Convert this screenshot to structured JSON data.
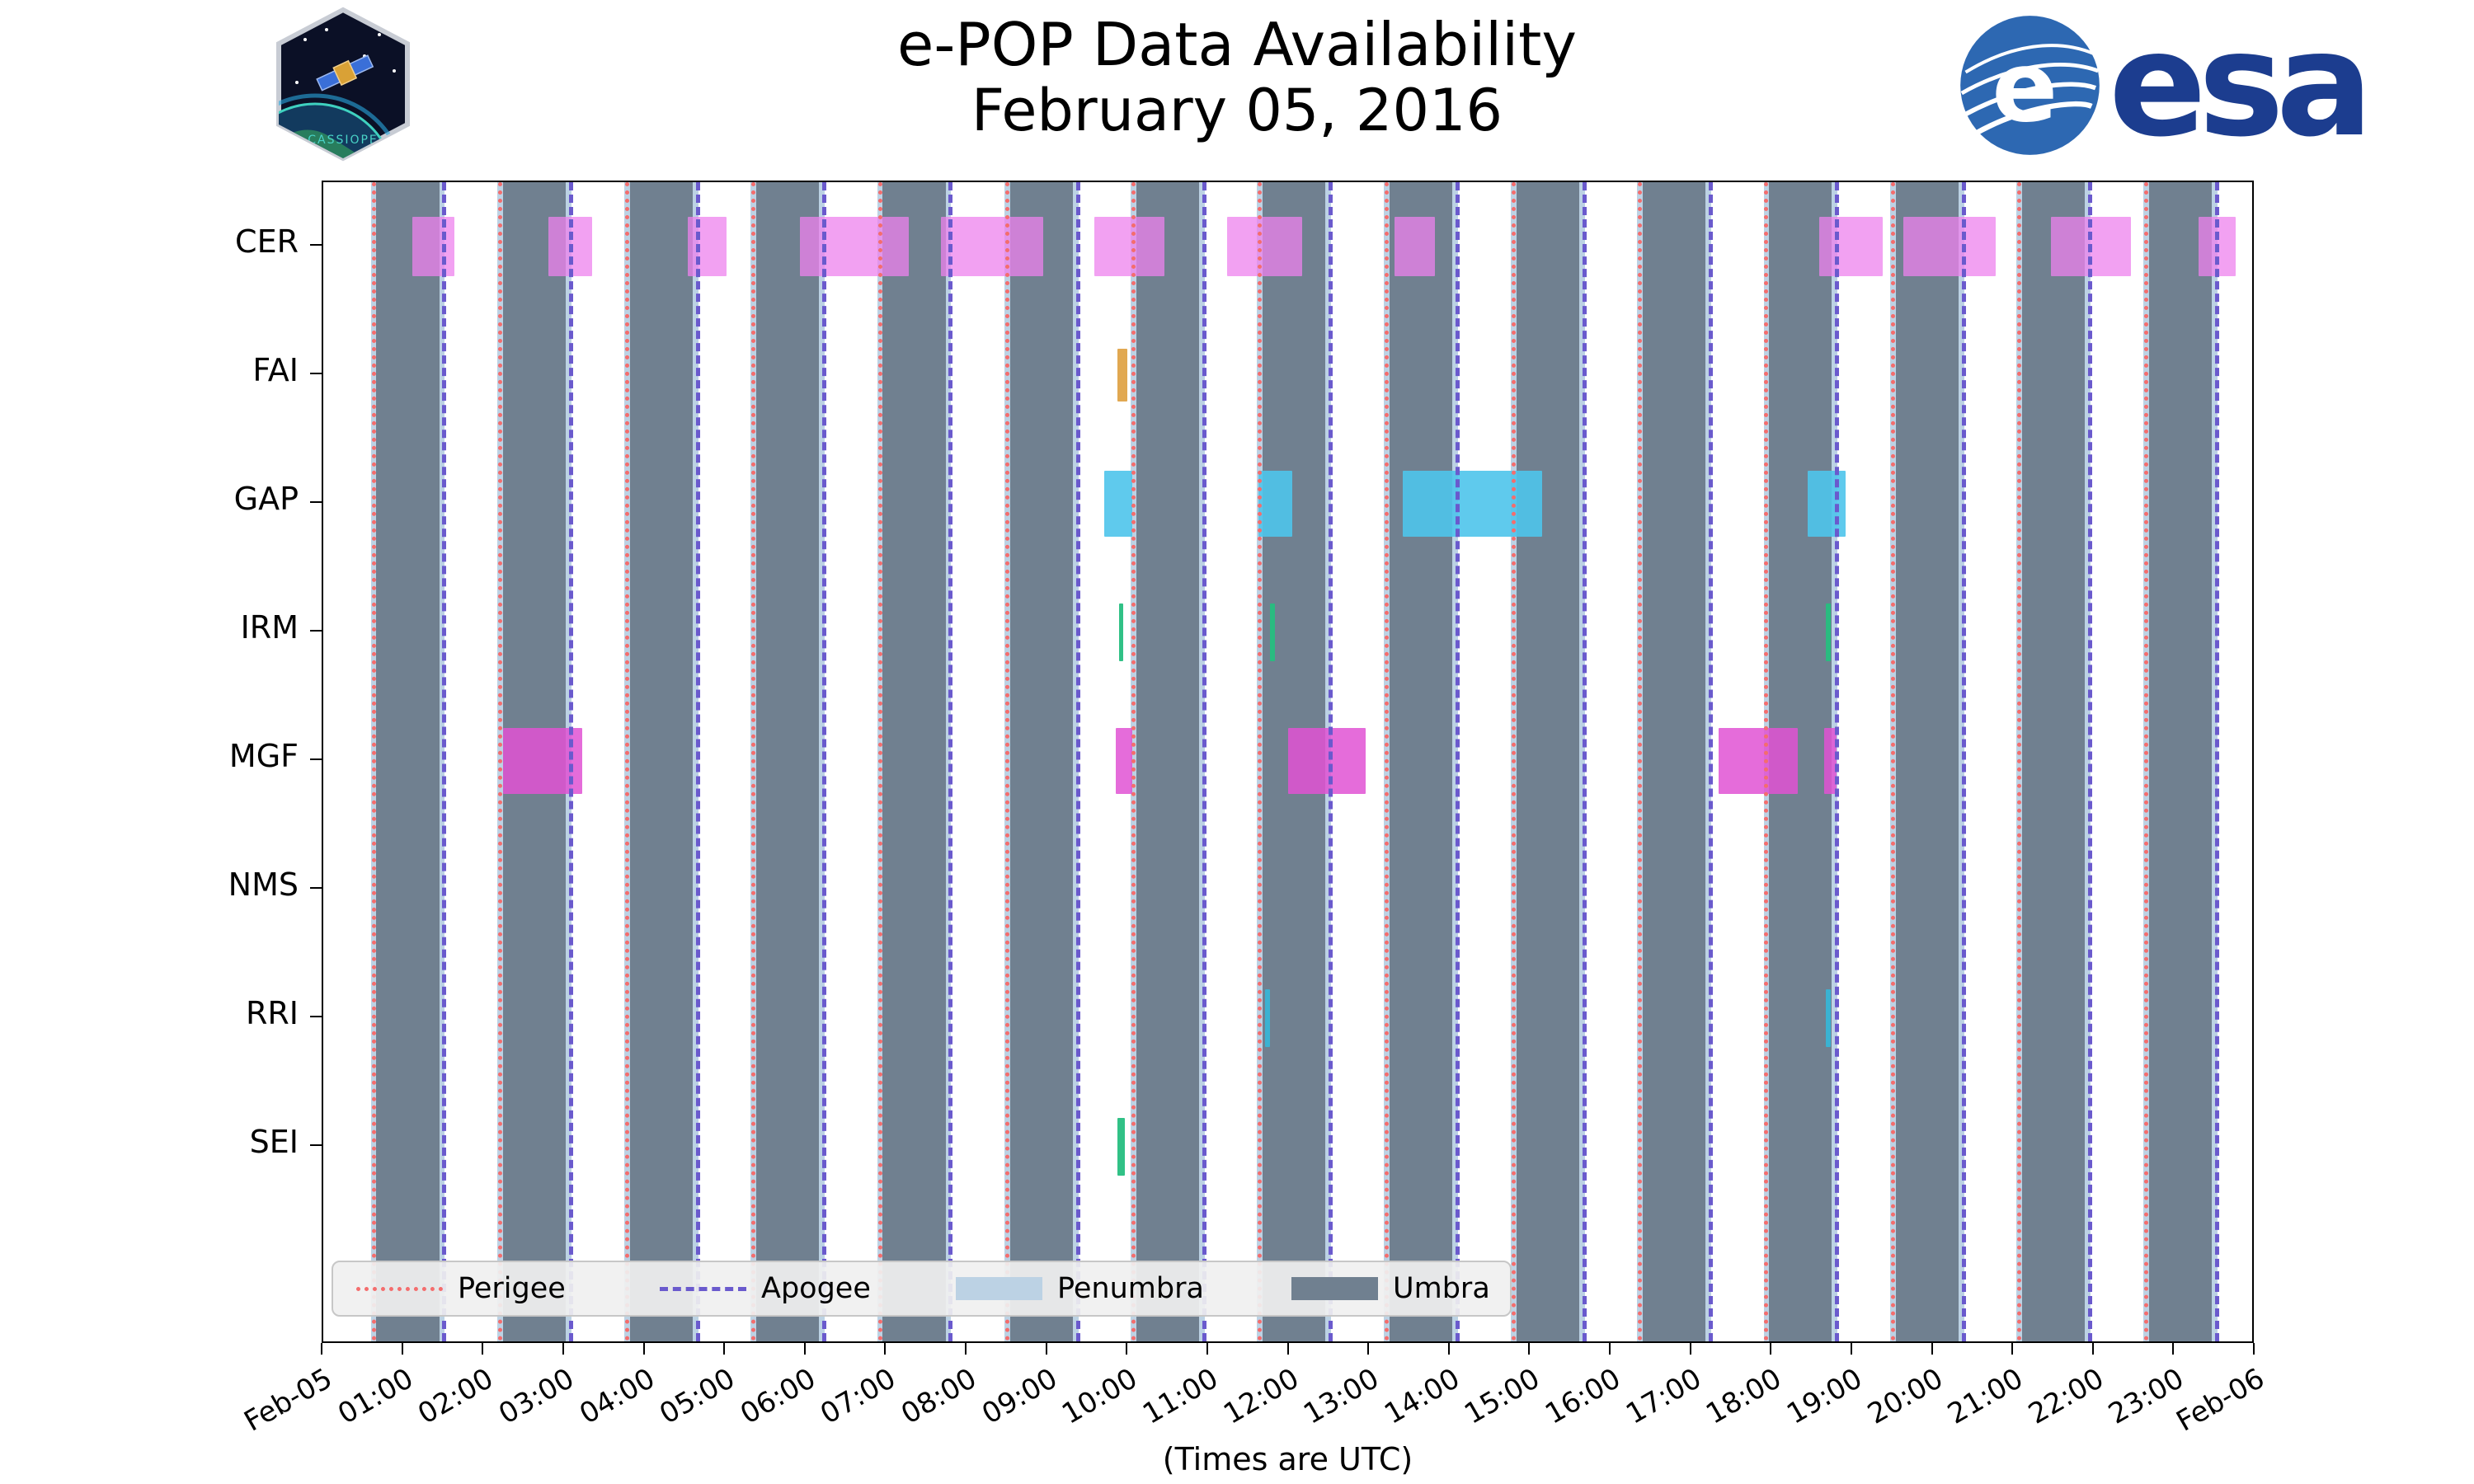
{
  "esa_wordmark": "esa",
  "cassiope_text": "CASSIOPE",
  "colors": {
    "umbra": "#708090",
    "penumbra": "#bcd2e4",
    "perigee": "#f46d6d",
    "apogee": "#6a5acd",
    "esa_blue": "#1c3d8f",
    "esa_circle": "#2d68b2"
  },
  "legend": {
    "items": [
      {
        "key": "perigee",
        "label": "Perigee"
      },
      {
        "key": "apogee",
        "label": "Apogee"
      },
      {
        "key": "penumbra",
        "label": "Penumbra"
      },
      {
        "key": "umbra",
        "label": "Umbra"
      }
    ]
  },
  "chart_data": {
    "type": "bar",
    "subtype": "availability_timeline",
    "title": "e-POP Data Availability",
    "subtitle": "February 05, 2016",
    "xlabel": "(Times are UTC)",
    "x_range_hours": [
      0,
      24
    ],
    "grid": false,
    "legend_position": "lower-left inside plot",
    "x_tick_labels": [
      "Feb-05",
      "01:00",
      "02:00",
      "03:00",
      "04:00",
      "05:00",
      "06:00",
      "07:00",
      "08:00",
      "09:00",
      "10:00",
      "11:00",
      "12:00",
      "13:00",
      "14:00",
      "15:00",
      "16:00",
      "17:00",
      "18:00",
      "19:00",
      "20:00",
      "21:00",
      "22:00",
      "23:00",
      "Feb-06"
    ],
    "rows": [
      "CER",
      "FAI",
      "GAP",
      "IRM",
      "MGF",
      "NMS",
      "RRI",
      "SEI"
    ],
    "umbra_intervals_h": [
      [
        0.66,
        1.44
      ],
      [
        2.23,
        3.01
      ],
      [
        3.81,
        4.59
      ],
      [
        5.38,
        6.16
      ],
      [
        6.95,
        7.73
      ],
      [
        8.53,
        9.31
      ],
      [
        10.1,
        10.88
      ],
      [
        11.67,
        12.45
      ],
      [
        13.24,
        14.02
      ],
      [
        14.82,
        15.6
      ],
      [
        16.39,
        17.17
      ],
      [
        17.96,
        18.74
      ],
      [
        19.53,
        20.31
      ],
      [
        21.1,
        21.88
      ],
      [
        22.68,
        23.46
      ]
    ],
    "penumbra_edge_h": 0.07,
    "perigee_h": [
      0.62,
      2.19,
      3.77,
      5.34,
      6.91,
      8.49,
      10.06,
      11.63,
      13.2,
      14.78,
      16.35,
      17.92,
      19.49,
      21.06,
      22.64
    ],
    "apogee_h": [
      1.5,
      3.07,
      4.65,
      6.22,
      7.79,
      9.37,
      10.94,
      12.51,
      14.08,
      15.66,
      17.23,
      18.8,
      20.37,
      21.94,
      23.52
    ],
    "bars": {
      "CER": [
        [
          1.11,
          1.63
        ],
        [
          2.8,
          3.34
        ],
        [
          4.53,
          5.01
        ],
        [
          5.92,
          7.27
        ],
        [
          7.67,
          8.94
        ],
        [
          9.58,
          10.45
        ],
        [
          11.23,
          12.16
        ],
        [
          13.31,
          13.81
        ],
        [
          18.58,
          19.37
        ],
        [
          19.63,
          20.77
        ],
        [
          21.46,
          22.45
        ],
        [
          23.29,
          23.75
        ]
      ],
      "FAI": [
        [
          9.86,
          9.99
        ]
      ],
      "GAP": [
        [
          9.7,
          10.05
        ],
        [
          11.62,
          12.04
        ],
        [
          13.41,
          15.14
        ],
        [
          18.44,
          18.91
        ]
      ],
      "IRM": [
        [
          9.88,
          9.94
        ],
        [
          11.76,
          11.82
        ],
        [
          18.66,
          18.72
        ]
      ],
      "MGF": [
        [
          2.23,
          3.22
        ],
        [
          9.84,
          10.05
        ],
        [
          11.98,
          12.95
        ],
        [
          17.33,
          18.32
        ],
        [
          18.64,
          18.8
        ]
      ],
      "NMS": [],
      "RRI": [
        [
          11.7,
          11.76
        ],
        [
          18.66,
          18.72
        ]
      ],
      "SEI": [
        [
          9.86,
          9.96
        ]
      ]
    },
    "row_styles": {
      "CER": {
        "color": "rgba(238,130,238,0.75)",
        "height": 72
      },
      "FAI": {
        "color": "rgba(222,158,62,0.9)",
        "height": 64
      },
      "GAP": {
        "color": "rgba(78,196,235,0.9)",
        "height": 80
      },
      "IRM": {
        "color": "rgba(38,190,128,0.95)",
        "height": 70
      },
      "MGF": {
        "color": "rgba(224,82,212,0.85)",
        "height": 80
      },
      "NMS": {
        "color": "rgba(150,150,150,0.9)",
        "height": 70
      },
      "RRI": {
        "color": "rgba(56,180,214,0.95)",
        "height": 70
      },
      "SEI": {
        "color": "rgba(38,190,128,0.95)",
        "height": 70
      }
    }
  }
}
